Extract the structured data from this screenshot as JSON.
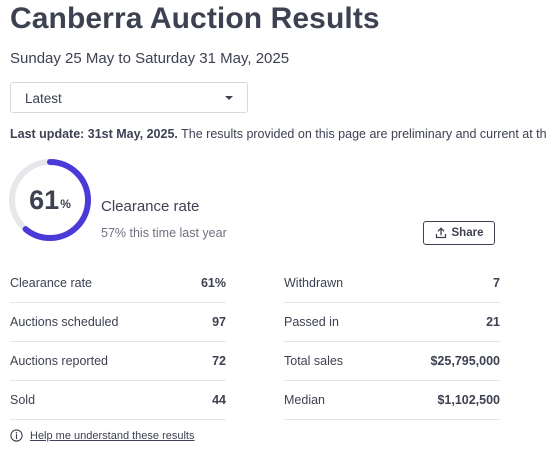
{
  "header": {
    "title": "Canberra Auction Results",
    "date_range": "Sunday 25 May to Saturday 31 May, 2025"
  },
  "period_select": {
    "selected": "Latest"
  },
  "last_update": {
    "bold": "Last update: 31st May, 2025.",
    "text": " The results provided on this page are preliminary and current at th"
  },
  "clearance_gauge": {
    "value": "61",
    "percent_sign": "%",
    "fraction": 0.61,
    "title": "Clearance rate",
    "comparison": "57% this time last year"
  },
  "share": {
    "label": "Share"
  },
  "stats_left": [
    {
      "label": "Clearance rate",
      "value": "61%"
    },
    {
      "label": "Auctions scheduled",
      "value": "97"
    },
    {
      "label": "Auctions reported",
      "value": "72"
    },
    {
      "label": "Sold",
      "value": "44"
    }
  ],
  "stats_right": [
    {
      "label": "Withdrawn",
      "value": "7"
    },
    {
      "label": "Passed in",
      "value": "21"
    },
    {
      "label": "Total sales",
      "value": "$25,795,000"
    },
    {
      "label": "Median",
      "value": "$1,102,500"
    }
  ],
  "help": {
    "link_text": "Help me understand these results"
  },
  "colors": {
    "text": "#3d4152",
    "gauge_track": "#e6e7eb",
    "gauge_fill": "#4b39d8"
  },
  "icons": {
    "share": "share-upload-icon",
    "info": "info-circle-icon",
    "select": "chevron-down-icon"
  }
}
